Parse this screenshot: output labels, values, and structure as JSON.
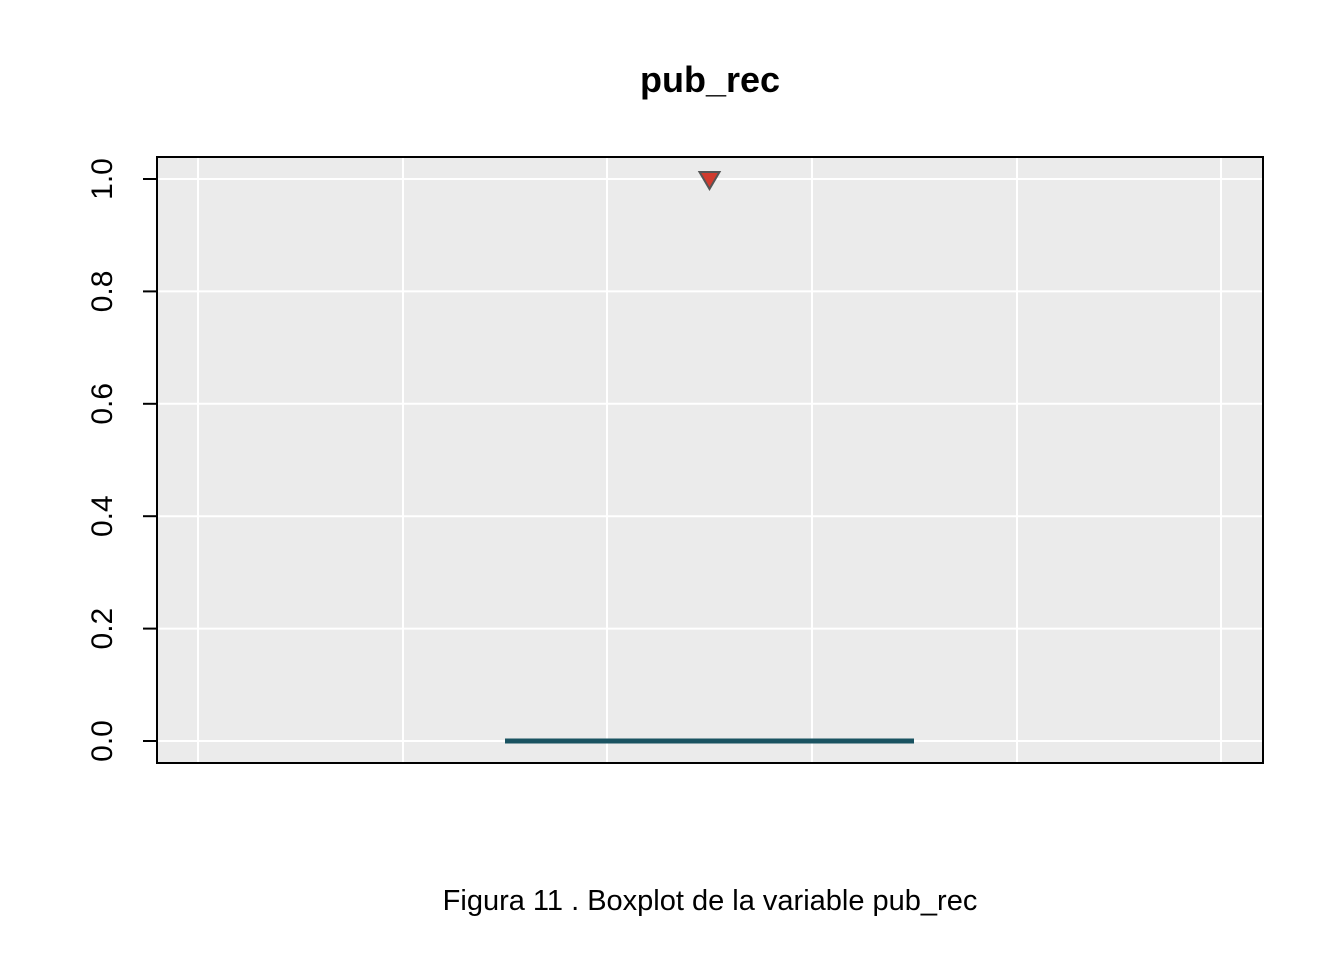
{
  "chart_data": {
    "type": "boxplot",
    "title": "pub_rec",
    "xlabel": "",
    "ylabel": "",
    "caption": "Figura  11 . Boxplot de la variable  pub_rec",
    "ylim": [
      -0.04,
      1.04
    ],
    "y_ticks": [
      "0.0",
      "0.2",
      "0.4",
      "0.6",
      "0.8",
      "1.0"
    ],
    "y_tick_values": [
      0,
      0.2,
      0.4,
      0.6,
      0.8,
      1.0
    ],
    "grid": true,
    "box": {
      "min": 0,
      "q1": 0,
      "median": 0,
      "q3": 0,
      "max": 0
    },
    "outliers": [
      1.0
    ],
    "colors": {
      "panel_background": "#ebebeb",
      "grid": "#ffffff",
      "box_line": "#1a5361",
      "outlier_fill": "#d03b2e",
      "outlier_stroke": "#555555"
    }
  }
}
